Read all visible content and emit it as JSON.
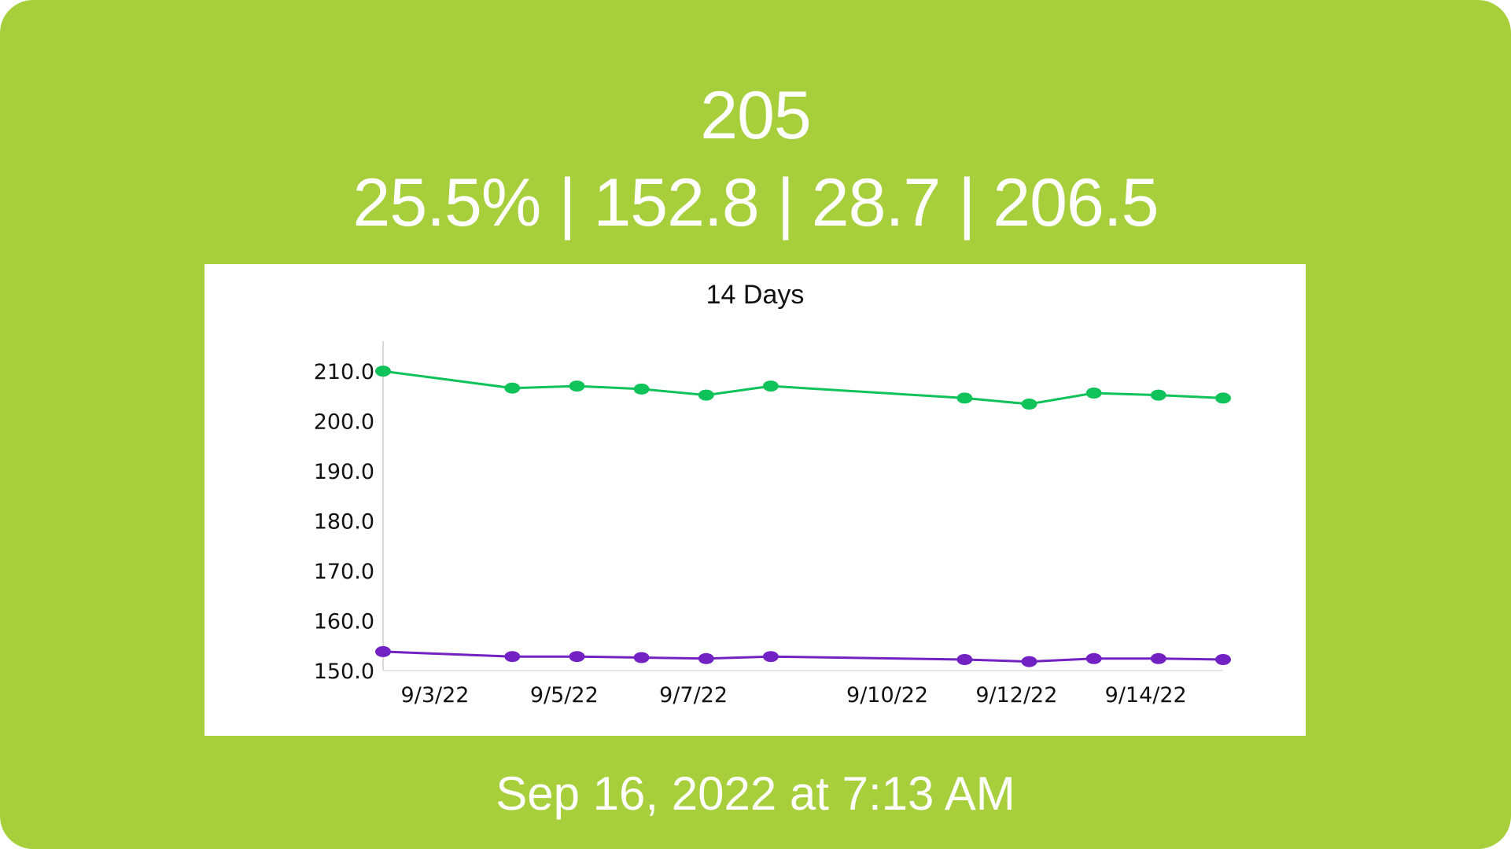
{
  "widget": {
    "current_weight": "205",
    "stats_line": "25.5% | 152.8 | 28.7 | 206.5",
    "timestamp": "Sep 16, 2022 at 7:13 AM",
    "background_color": "#a6cf3b"
  },
  "chart_data": {
    "type": "line",
    "title": "14 Days",
    "xlabel": "",
    "ylabel": "",
    "x": [
      "9/3/22",
      "9/5/22",
      "9/6/22",
      "9/7/22",
      "9/8/22",
      "9/9/22",
      "9/12/22",
      "9/13/22",
      "9/14/22",
      "9/15/22",
      "9/16/22"
    ],
    "x_tick_labels": [
      "9/3/22",
      "9/5/22",
      "9/7/22",
      "9/10/22",
      "9/12/22",
      "9/14/22"
    ],
    "x_tick_dates": [
      "2022-09-03",
      "2022-09-05",
      "2022-09-07",
      "2022-09-10",
      "2022-09-12",
      "2022-09-14"
    ],
    "x_dates": [
      "2022-09-03",
      "2022-09-05",
      "2022-09-06",
      "2022-09-07",
      "2022-09-08",
      "2022-09-09",
      "2022-09-12",
      "2022-09-13",
      "2022-09-14",
      "2022-09-15",
      "2022-09-16"
    ],
    "x_range": [
      "2022-09-03",
      "2022-09-16"
    ],
    "y_ticks": [
      "210.0",
      "200.0",
      "190.0",
      "180.0",
      "170.0",
      "160.0",
      "150.0"
    ],
    "ylim": [
      150,
      216
    ],
    "grid": false,
    "series": [
      {
        "color": "#10c25a",
        "values": [
          210.0,
          206.6,
          207.0,
          206.4,
          205.2,
          207.0,
          204.6,
          203.4,
          205.6,
          205.2,
          204.6
        ]
      },
      {
        "color": "#7222c2",
        "values": [
          153.8,
          152.8,
          152.8,
          152.6,
          152.4,
          152.8,
          152.2,
          151.8,
          152.4,
          152.4,
          152.2
        ]
      }
    ]
  }
}
